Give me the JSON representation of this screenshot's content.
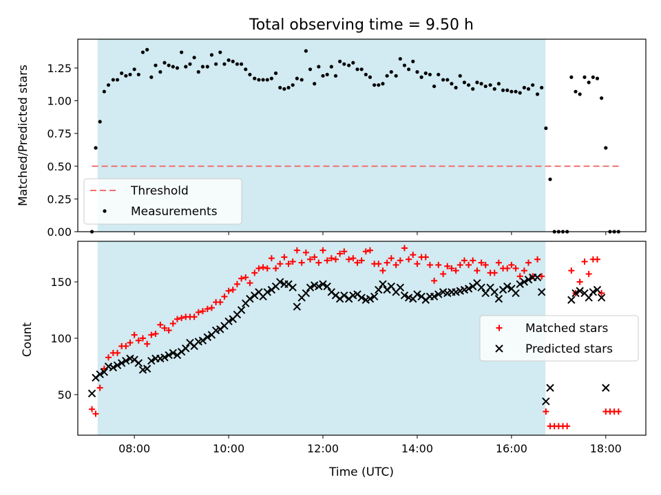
{
  "chart_data": {
    "type": "scatter",
    "title": "Total observing time = 9.50 h",
    "xlabel": "Time (UTC)",
    "x_units": "hours UTC",
    "xlim": [
      6.8,
      18.85
    ],
    "xticks": [
      {
        "value": 8,
        "label": "08:00"
      },
      {
        "value": 10,
        "label": "10:00"
      },
      {
        "value": 12,
        "label": "12:00"
      },
      {
        "value": 14,
        "label": "14:00"
      },
      {
        "value": 16,
        "label": "16:00"
      },
      {
        "value": 18,
        "label": "18:00"
      }
    ],
    "shaded_region": {
      "x_start": 7.22,
      "x_end": 16.72,
      "color": "#add8e6"
    },
    "colors": {
      "threshold": "#f07070",
      "measurements": "#000000",
      "matched": "#ff0000",
      "predicted": "#000000",
      "shade": "#add8e6"
    },
    "top": {
      "ylabel": "Matched/Predicted stars",
      "ylim": [
        0,
        1.47
      ],
      "yticks": [
        "0.00",
        "0.25",
        "0.50",
        "0.75",
        "1.00",
        "1.25"
      ],
      "legend": {
        "position": "lower left",
        "entries": [
          "Threshold",
          "Measurements"
        ]
      },
      "threshold": {
        "name": "Threshold",
        "x": [
          7.1,
          18.3
        ],
        "y": 0.5
      },
      "measurements": {
        "name": "Measurements",
        "x": [
          7.1,
          7.18,
          7.27,
          7.36,
          7.45,
          7.55,
          7.64,
          7.73,
          7.82,
          7.91,
          8.0,
          8.09,
          8.18,
          8.27,
          8.36,
          8.45,
          8.55,
          8.64,
          8.73,
          8.82,
          8.91,
          9.0,
          9.09,
          9.18,
          9.27,
          9.36,
          9.45,
          9.55,
          9.64,
          9.73,
          9.82,
          9.91,
          10.0,
          10.09,
          10.18,
          10.27,
          10.36,
          10.45,
          10.55,
          10.64,
          10.73,
          10.82,
          10.91,
          11.0,
          11.09,
          11.18,
          11.27,
          11.36,
          11.45,
          11.55,
          11.64,
          11.73,
          11.82,
          11.91,
          12.0,
          12.09,
          12.18,
          12.27,
          12.36,
          12.45,
          12.55,
          12.64,
          12.73,
          12.82,
          12.91,
          13.0,
          13.09,
          13.18,
          13.27,
          13.36,
          13.45,
          13.55,
          13.64,
          13.73,
          13.82,
          13.91,
          14.0,
          14.09,
          14.18,
          14.27,
          14.36,
          14.45,
          14.55,
          14.64,
          14.73,
          14.82,
          14.91,
          15.0,
          15.09,
          15.18,
          15.27,
          15.36,
          15.45,
          15.55,
          15.64,
          15.73,
          15.82,
          15.91,
          16.0,
          16.09,
          16.18,
          16.27,
          16.36,
          16.45,
          16.55,
          16.64,
          16.73,
          16.82,
          16.91,
          17.0,
          17.09,
          17.18,
          17.27,
          17.36,
          17.45,
          17.55,
          17.64,
          17.73,
          17.82,
          17.91,
          18.0,
          18.09,
          18.18,
          18.27
        ],
        "y": [
          0.0,
          0.64,
          0.84,
          1.07,
          1.12,
          1.16,
          1.16,
          1.21,
          1.19,
          1.2,
          1.24,
          1.2,
          1.37,
          1.39,
          1.18,
          1.27,
          1.22,
          1.29,
          1.27,
          1.26,
          1.25,
          1.37,
          1.26,
          1.28,
          1.33,
          1.22,
          1.26,
          1.26,
          1.35,
          1.28,
          1.37,
          1.28,
          1.31,
          1.3,
          1.28,
          1.28,
          1.24,
          1.2,
          1.17,
          1.16,
          1.16,
          1.16,
          1.17,
          1.21,
          1.1,
          1.09,
          1.1,
          1.12,
          1.17,
          1.16,
          1.38,
          1.24,
          1.13,
          1.26,
          1.19,
          1.2,
          1.26,
          1.19,
          1.3,
          1.28,
          1.27,
          1.29,
          1.24,
          1.24,
          1.2,
          1.18,
          1.12,
          1.12,
          1.13,
          1.19,
          1.22,
          1.19,
          1.32,
          1.27,
          1.24,
          1.3,
          1.22,
          1.18,
          1.21,
          1.2,
          1.11,
          1.2,
          1.16,
          1.16,
          1.13,
          1.1,
          1.19,
          1.14,
          1.12,
          1.09,
          1.14,
          1.13,
          1.11,
          1.12,
          1.09,
          1.13,
          1.08,
          1.08,
          1.07,
          1.07,
          1.06,
          1.1,
          1.09,
          1.12,
          1.05,
          1.1,
          0.79,
          0.4,
          0.0,
          0.0,
          0.0,
          0.0,
          1.18,
          1.07,
          1.05,
          1.18,
          1.14,
          1.18,
          1.17,
          1.02,
          0.64,
          0.0,
          0.0,
          0.0
        ]
      }
    },
    "bottom": {
      "ylabel": "Count",
      "ylim": [
        14,
        186
      ],
      "yticks": [
        "50",
        "100",
        "150"
      ],
      "legend": {
        "position": "center right",
        "entries": [
          "Matched stars",
          "Predicted stars"
        ]
      },
      "matched": {
        "name": "Matched stars",
        "x": [
          7.1,
          7.18,
          7.27,
          7.36,
          7.45,
          7.55,
          7.64,
          7.73,
          7.82,
          7.91,
          8.0,
          8.09,
          8.18,
          8.27,
          8.36,
          8.45,
          8.55,
          8.64,
          8.73,
          8.82,
          8.91,
          9.0,
          9.09,
          9.18,
          9.27,
          9.36,
          9.45,
          9.55,
          9.64,
          9.73,
          9.82,
          9.91,
          10.0,
          10.09,
          10.18,
          10.27,
          10.36,
          10.45,
          10.55,
          10.64,
          10.73,
          10.82,
          10.91,
          11.0,
          11.09,
          11.18,
          11.27,
          11.36,
          11.45,
          11.55,
          11.64,
          11.73,
          11.82,
          11.91,
          12.0,
          12.09,
          12.18,
          12.27,
          12.36,
          12.45,
          12.55,
          12.64,
          12.73,
          12.82,
          12.91,
          13.0,
          13.09,
          13.18,
          13.27,
          13.36,
          13.45,
          13.55,
          13.64,
          13.73,
          13.82,
          13.91,
          14.0,
          14.09,
          14.18,
          14.27,
          14.36,
          14.45,
          14.55,
          14.64,
          14.73,
          14.82,
          14.91,
          15.0,
          15.09,
          15.18,
          15.27,
          15.36,
          15.45,
          15.55,
          15.64,
          15.73,
          15.82,
          15.91,
          16.0,
          16.09,
          16.18,
          16.27,
          16.36,
          16.45,
          16.55,
          16.64,
          16.73,
          16.82,
          16.91,
          17.0,
          17.09,
          17.18,
          17.27,
          17.36,
          17.45,
          17.55,
          17.64,
          17.73,
          17.82,
          17.91,
          18.0,
          18.09,
          18.18,
          18.27
        ],
        "y": [
          37,
          33,
          56,
          73,
          83,
          87,
          87,
          93,
          93,
          96,
          103,
          98,
          100,
          95,
          103,
          104,
          112,
          109,
          107,
          113,
          117,
          118,
          119,
          119,
          119,
          123,
          124,
          126,
          127,
          132,
          132,
          137,
          142,
          143,
          148,
          153,
          154,
          149,
          158,
          162,
          163,
          162,
          171,
          162,
          166,
          172,
          166,
          168,
          178,
          167,
          176,
          170,
          172,
          167,
          178,
          169,
          171,
          170,
          175,
          177,
          170,
          171,
          167,
          169,
          177,
          178,
          166,
          166,
          160,
          167,
          171,
          165,
          169,
          180,
          170,
          174,
          166,
          172,
          172,
          165,
          151,
          165,
          157,
          164,
          162,
          160,
          165,
          169,
          165,
          169,
          160,
          167,
          165,
          158,
          158,
          167,
          162,
          162,
          165,
          162,
          155,
          160,
          167,
          155,
          170,
          155,
          35,
          22,
          22,
          22,
          22,
          22,
          160,
          140,
          150,
          168,
          157,
          170,
          170,
          140,
          35,
          35,
          35,
          35
        ]
      },
      "predicted": {
        "name": "Predicted stars",
        "x": [
          7.1,
          7.18,
          7.27,
          7.36,
          7.45,
          7.55,
          7.64,
          7.73,
          7.82,
          7.91,
          8.0,
          8.09,
          8.18,
          8.27,
          8.36,
          8.45,
          8.55,
          8.64,
          8.73,
          8.82,
          8.91,
          9.0,
          9.09,
          9.18,
          9.27,
          9.36,
          9.45,
          9.55,
          9.64,
          9.73,
          9.82,
          9.91,
          10.0,
          10.09,
          10.18,
          10.27,
          10.36,
          10.45,
          10.55,
          10.64,
          10.73,
          10.82,
          10.91,
          11.0,
          11.09,
          11.18,
          11.27,
          11.36,
          11.45,
          11.55,
          11.64,
          11.73,
          11.82,
          11.91,
          12.0,
          12.09,
          12.18,
          12.27,
          12.36,
          12.45,
          12.55,
          12.64,
          12.73,
          12.82,
          12.91,
          13.0,
          13.09,
          13.18,
          13.27,
          13.36,
          13.45,
          13.55,
          13.64,
          13.73,
          13.82,
          13.91,
          14.0,
          14.09,
          14.18,
          14.27,
          14.36,
          14.45,
          14.55,
          14.64,
          14.73,
          14.82,
          14.91,
          15.0,
          15.09,
          15.18,
          15.27,
          15.36,
          15.45,
          15.55,
          15.64,
          15.73,
          15.82,
          15.91,
          16.0,
          16.09,
          16.18,
          16.27,
          16.36,
          16.45,
          16.55,
          16.64,
          16.73,
          16.82,
          16.91,
          17.0,
          17.09,
          17.18,
          17.27,
          17.36,
          17.45,
          17.55,
          17.64,
          17.73,
          17.82,
          17.91,
          18.0,
          18.09,
          18.18,
          18.27
        ],
        "y": [
          51,
          65,
          68,
          70,
          75,
          74,
          76,
          78,
          80,
          82,
          81,
          78,
          72,
          73,
          80,
          82,
          82,
          83,
          85,
          87,
          85,
          88,
          91,
          96,
          93,
          97,
          98,
          101,
          103,
          107,
          108,
          111,
          115,
          117,
          121,
          125,
          131,
          135,
          138,
          141,
          137,
          141,
          143,
          146,
          150,
          148,
          148,
          145,
          128,
          136,
          140,
          145,
          147,
          146,
          148,
          146,
          141,
          138,
          135,
          138,
          135,
          138,
          139,
          136,
          134,
          135,
          137,
          143,
          148,
          143,
          146,
          141,
          145,
          138,
          136,
          135,
          139,
          137,
          134,
          137,
          137,
          139,
          141,
          140,
          141,
          141,
          142,
          143,
          144,
          146,
          149,
          145,
          140,
          145,
          141,
          135,
          143,
          146,
          144,
          140,
          148,
          150,
          152,
          154,
          154,
          141,
          44,
          56,
          null,
          null,
          null,
          null,
          134,
          140,
          142,
          140,
          136,
          141,
          143,
          136,
          56,
          null,
          null,
          null
        ]
      }
    }
  }
}
